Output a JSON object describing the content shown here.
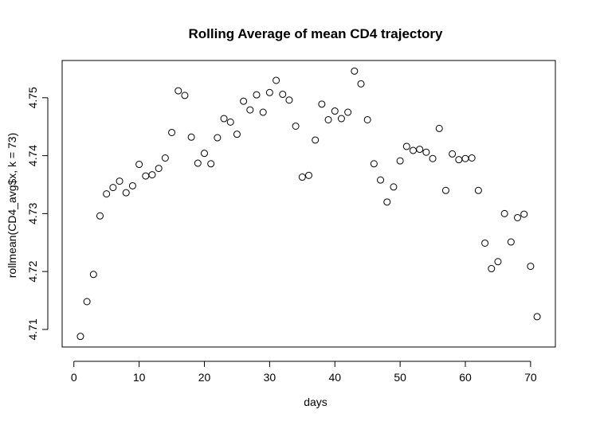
{
  "chart_data": {
    "type": "scatter",
    "title": "Rolling Average of mean CD4 trajectory",
    "xlabel": "days",
    "ylabel": "rollmean(CD4_avg$x, k = 73)",
    "xlim": [
      1,
      71
    ],
    "ylim": [
      4.7088,
      4.7546
    ],
    "x_ticks": [
      0,
      10,
      20,
      30,
      40,
      50,
      60,
      70
    ],
    "y_ticks": [
      4.71,
      4.72,
      4.73,
      4.74,
      4.75
    ],
    "grid": false,
    "marker": "open-circle",
    "x": [
      1,
      2,
      3,
      4,
      5,
      6,
      7,
      8,
      9,
      10,
      11,
      12,
      13,
      14,
      15,
      16,
      17,
      18,
      19,
      20,
      21,
      22,
      23,
      24,
      25,
      26,
      27,
      28,
      29,
      30,
      31,
      32,
      33,
      34,
      35,
      36,
      37,
      38,
      39,
      40,
      41,
      42,
      43,
      44,
      45,
      46,
      47,
      48,
      49,
      50,
      51,
      52,
      53,
      54,
      55,
      56,
      57,
      58,
      59,
      60,
      61,
      62,
      63,
      64,
      65,
      66,
      67,
      68,
      69,
      70,
      71
    ],
    "y": [
      4.7088,
      4.7148,
      4.7195,
      4.7296,
      4.7334,
      4.7345,
      4.7356,
      4.7336,
      4.7348,
      4.7385,
      4.7365,
      4.7367,
      4.7378,
      4.7396,
      4.744,
      4.7512,
      4.7504,
      4.7432,
      4.7387,
      4.7404,
      4.7386,
      4.7431,
      4.7464,
      4.7458,
      4.7437,
      4.7494,
      4.7479,
      4.7505,
      4.7475,
      4.7509,
      4.753,
      4.7506,
      4.7496,
      4.7451,
      4.7363,
      4.7366,
      4.7427,
      4.7489,
      4.7462,
      4.7477,
      4.7464,
      4.7475,
      4.7546,
      4.7524,
      4.7462,
      4.7386,
      4.7358,
      4.732,
      4.7346,
      4.7391,
      4.7416,
      4.7409,
      4.7411,
      4.7406,
      4.7395,
      4.7447,
      4.734,
      4.7403,
      4.7393,
      4.7395,
      4.7396,
      4.734,
      4.7249,
      4.7205,
      4.7217,
      4.73,
      4.7251,
      4.7293,
      4.7299,
      4.7209,
      4.7122
    ]
  }
}
